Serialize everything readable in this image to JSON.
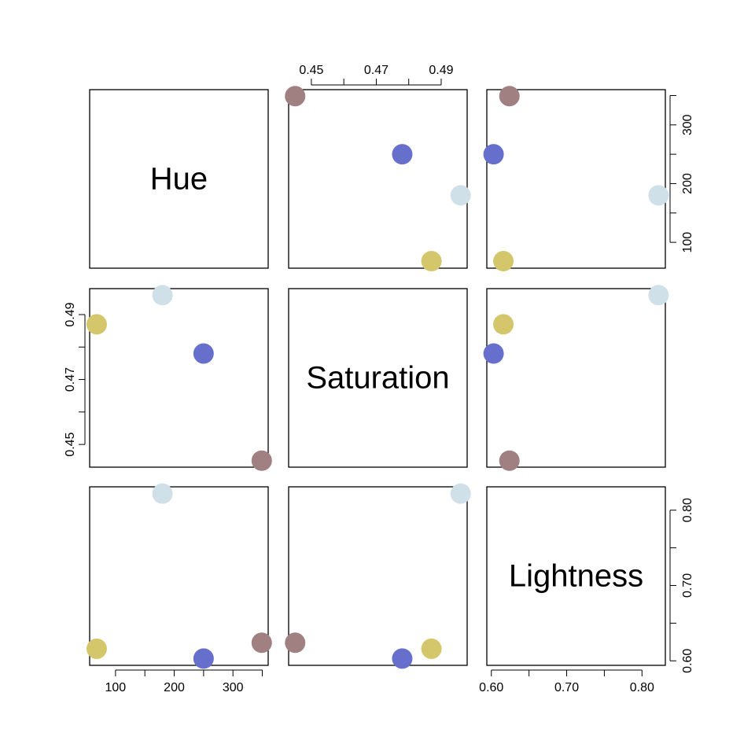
{
  "chart_data": {
    "type": "scatter",
    "title": "",
    "variables": [
      "Hue",
      "Saturation",
      "Lightness"
    ],
    "ranges": {
      "Hue": [
        56,
        360
      ],
      "Saturation": [
        0.443,
        0.498
      ],
      "Lightness": [
        0.594,
        0.831
      ]
    },
    "ticks": {
      "Hue": {
        "major": [
          100,
          150,
          200,
          250,
          300,
          350
        ],
        "labels": [
          "100",
          "200",
          "300"
        ],
        "label_values": [
          100,
          200,
          300
        ]
      },
      "Saturation": {
        "major": [
          0.45,
          0.46,
          0.47,
          0.48,
          0.49
        ],
        "labels": [
          "0.45",
          "0.47",
          "0.49"
        ],
        "label_values": [
          0.45,
          0.47,
          0.49
        ]
      },
      "Lightness": {
        "major": [
          0.6,
          0.65,
          0.7,
          0.75,
          0.8
        ],
        "labels": [
          "0.60",
          "0.70",
          "0.80"
        ],
        "label_values": [
          0.6,
          0.7,
          0.8
        ]
      }
    },
    "points": [
      {
        "Hue": 68,
        "Saturation": 0.487,
        "Lightness": 0.616,
        "color": "#D4C66A"
      },
      {
        "Hue": 180,
        "Saturation": 0.496,
        "Lightness": 0.822,
        "color": "#D0E0E8"
      },
      {
        "Hue": 250,
        "Saturation": 0.478,
        "Lightness": 0.603,
        "color": "#6670CC"
      },
      {
        "Hue": 349,
        "Saturation": 0.445,
        "Lightness": 0.624,
        "color": "#A08080"
      }
    ],
    "grid": false
  }
}
